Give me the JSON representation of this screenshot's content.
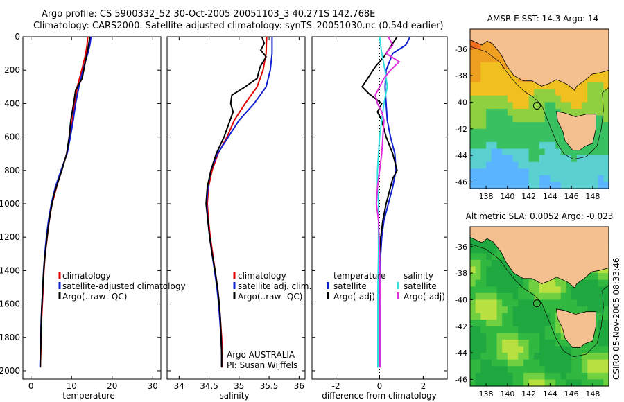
{
  "header": {
    "line1": "Argo profile: CS 5900332_52 30-Oct-2005 20051103_3 40.271S 142.768E",
    "line2": "Climatology: CARS2000. Satellite-adjusted climatology: synTS_20051030.nc (0.54d earlier)"
  },
  "colors": {
    "climatology": "#e00000",
    "satellite": "#1020d0",
    "argo": "#000000",
    "temp_satellite": "#1020d0",
    "temp_argo": "#000000",
    "sal_satellite": "#30e0e0",
    "sal_argo": "#e030e0",
    "land": "#f5c090"
  },
  "chart_data": [
    {
      "type": "line",
      "name": "temperature-profile",
      "xlabel": "temperature",
      "xticks": [
        0,
        10,
        20,
        30
      ],
      "xlim": [
        -2,
        32
      ],
      "ylim": [
        2050,
        0
      ],
      "yticks": [
        0,
        200,
        400,
        600,
        800,
        1000,
        1200,
        1400,
        1600,
        1800,
        2000
      ],
      "legend": [
        "climatology",
        "satellite-adjusted climatology",
        "Argo(..raw -QC)"
      ],
      "series": [
        {
          "name": "climatology",
          "color_key": "climatology",
          "points": [
            [
              14,
              0
            ],
            [
              13.8,
              50
            ],
            [
              13.5,
              100
            ],
            [
              12.5,
              200
            ],
            [
              11.4,
              300
            ],
            [
              10.8,
              400
            ],
            [
              10.2,
              500
            ],
            [
              9.5,
              600
            ],
            [
              8.8,
              700
            ],
            [
              7.5,
              800
            ],
            [
              6.3,
              900
            ],
            [
              5.2,
              1000
            ],
            [
              4.5,
              1100
            ],
            [
              4,
              1200
            ],
            [
              3.5,
              1300
            ],
            [
              3.2,
              1400
            ],
            [
              3,
              1500
            ],
            [
              2.8,
              1600
            ],
            [
              2.6,
              1700
            ],
            [
              2.5,
              1800
            ],
            [
              2.4,
              1900
            ],
            [
              2.3,
              1980
            ]
          ]
        },
        {
          "name": "satellite-adjusted climatology",
          "color_key": "satellite",
          "points": [
            [
              14.8,
              0
            ],
            [
              14.5,
              50
            ],
            [
              14,
              100
            ],
            [
              12.8,
              200
            ],
            [
              11.8,
              300
            ],
            [
              11,
              400
            ],
            [
              10.4,
              500
            ],
            [
              9.7,
              600
            ],
            [
              8.9,
              700
            ],
            [
              7.4,
              800
            ],
            [
              6,
              900
            ],
            [
              5,
              1000
            ],
            [
              4.3,
              1100
            ],
            [
              3.8,
              1200
            ],
            [
              3.4,
              1300
            ],
            [
              3.1,
              1400
            ],
            [
              2.9,
              1500
            ],
            [
              2.7,
              1600
            ],
            [
              2.5,
              1700
            ],
            [
              2.4,
              1800
            ],
            [
              2.3,
              1900
            ],
            [
              2.2,
              1980
            ]
          ]
        },
        {
          "name": "Argo(..raw -QC)",
          "color_key": "argo",
          "points": [
            [
              14.5,
              0
            ],
            [
              14.2,
              50
            ],
            [
              13.8,
              100
            ],
            [
              13.4,
              150
            ],
            [
              12.6,
              250
            ],
            [
              11,
              320
            ],
            [
              10.5,
              400
            ],
            [
              9.8,
              500
            ],
            [
              9.4,
              600
            ],
            [
              8.8,
              700
            ],
            [
              7.6,
              800
            ],
            [
              6.5,
              880
            ],
            [
              5.6,
              950
            ],
            [
              4.8,
              1050
            ],
            [
              4.2,
              1150
            ],
            [
              3.7,
              1250
            ],
            [
              3.3,
              1350
            ],
            [
              3,
              1450
            ],
            [
              2.8,
              1550
            ],
            [
              2.6,
              1650
            ],
            [
              2.5,
              1750
            ],
            [
              2.4,
              1850
            ],
            [
              2.3,
              1950
            ],
            [
              2.3,
              1980
            ]
          ]
        }
      ]
    },
    {
      "type": "line",
      "name": "salinity-profile",
      "xlabel": "salinity",
      "xticks": [
        34,
        34.5,
        35,
        35.5,
        36
      ],
      "xlim": [
        33.8,
        36.1
      ],
      "ylim": [
        2050,
        0
      ],
      "legend": [
        "climatology",
        "satellite adj. clim.",
        "Argo(..raw -QC)"
      ],
      "annotation": [
        "Argo AUSTRALIA",
        "PI: Susan Wijffels"
      ],
      "series": [
        {
          "name": "climatology",
          "color_key": "climatology",
          "points": [
            [
              35.46,
              0
            ],
            [
              35.45,
              100
            ],
            [
              35.4,
              200
            ],
            [
              35.3,
              300
            ],
            [
              35.1,
              400
            ],
            [
              34.92,
              500
            ],
            [
              34.8,
              600
            ],
            [
              34.65,
              700
            ],
            [
              34.55,
              800
            ],
            [
              34.49,
              900
            ],
            [
              34.47,
              1000
            ],
            [
              34.49,
              1100
            ],
            [
              34.52,
              1200
            ],
            [
              34.56,
              1300
            ],
            [
              34.6,
              1400
            ],
            [
              34.64,
              1500
            ],
            [
              34.67,
              1600
            ],
            [
              34.69,
              1700
            ],
            [
              34.71,
              1800
            ],
            [
              34.72,
              1900
            ],
            [
              34.72,
              1980
            ]
          ]
        },
        {
          "name": "satellite adj. clim.",
          "color_key": "satellite",
          "points": [
            [
              35.55,
              0
            ],
            [
              35.55,
              100
            ],
            [
              35.52,
              200
            ],
            [
              35.45,
              300
            ],
            [
              35.25,
              400
            ],
            [
              35.0,
              500
            ],
            [
              34.82,
              600
            ],
            [
              34.64,
              700
            ],
            [
              34.53,
              800
            ],
            [
              34.48,
              900
            ],
            [
              34.46,
              1000
            ],
            [
              34.48,
              1100
            ],
            [
              34.51,
              1200
            ],
            [
              34.55,
              1300
            ],
            [
              34.59,
              1400
            ],
            [
              34.63,
              1500
            ],
            [
              34.66,
              1600
            ],
            [
              34.68,
              1700
            ],
            [
              34.7,
              1800
            ],
            [
              34.71,
              1900
            ],
            [
              34.71,
              1980
            ]
          ]
        },
        {
          "name": "Argo(..raw -QC)",
          "color_key": "argo",
          "points": [
            [
              35.38,
              0
            ],
            [
              35.42,
              40
            ],
            [
              35.36,
              80
            ],
            [
              35.45,
              120
            ],
            [
              35.35,
              180
            ],
            [
              35.3,
              250
            ],
            [
              35.1,
              300
            ],
            [
              34.88,
              350
            ],
            [
              34.86,
              400
            ],
            [
              34.9,
              450
            ],
            [
              34.85,
              500
            ],
            [
              34.75,
              600
            ],
            [
              34.62,
              700
            ],
            [
              34.53,
              800
            ],
            [
              34.47,
              900
            ],
            [
              34.45,
              1000
            ],
            [
              34.48,
              1100
            ],
            [
              34.51,
              1200
            ],
            [
              34.55,
              1300
            ],
            [
              34.6,
              1400
            ],
            [
              34.64,
              1500
            ],
            [
              34.67,
              1600
            ],
            [
              34.69,
              1700
            ],
            [
              34.7,
              1800
            ],
            [
              34.71,
              1900
            ],
            [
              34.71,
              1980
            ]
          ]
        }
      ]
    },
    {
      "type": "line",
      "name": "difference-profile",
      "xlabel": "difference from climatology",
      "xticks": [
        -2,
        0,
        2
      ],
      "xlim": [
        -3.1,
        3.1
      ],
      "ylim": [
        2050,
        0
      ],
      "legend": [
        {
          "group": "temperature",
          "items": [
            "satellite",
            "Argo(-adj)"
          ]
        },
        {
          "group": "salinity",
          "items": [
            "satellite",
            "Argo(-adj)"
          ]
        }
      ],
      "series": [
        {
          "name": "temperature satellite",
          "color_key": "temp_satellite",
          "points": [
            [
              1.4,
              0
            ],
            [
              1.2,
              50
            ],
            [
              0.6,
              100
            ],
            [
              0.3,
              200
            ],
            [
              0.25,
              300
            ],
            [
              0.3,
              400
            ],
            [
              0.35,
              500
            ],
            [
              0.5,
              600
            ],
            [
              0.7,
              700
            ],
            [
              0.75,
              800
            ],
            [
              0.6,
              900
            ],
            [
              0.4,
              1000
            ],
            [
              0.2,
              1100
            ],
            [
              0.1,
              1200
            ],
            [
              0.05,
              1300
            ],
            [
              0.02,
              1400
            ],
            [
              0,
              1500
            ],
            [
              -0.02,
              1600
            ],
            [
              -0.03,
              1700
            ],
            [
              -0.04,
              1800
            ],
            [
              -0.05,
              1900
            ],
            [
              -0.05,
              1980
            ]
          ]
        },
        {
          "name": "temperature Argo(-adj)",
          "color_key": "temp_argo",
          "points": [
            [
              0.8,
              0
            ],
            [
              0.5,
              60
            ],
            [
              0.2,
              120
            ],
            [
              -0.2,
              180
            ],
            [
              -0.8,
              300
            ],
            [
              -0.5,
              340
            ],
            [
              0.1,
              400
            ],
            [
              -0.1,
              450
            ],
            [
              0.1,
              500
            ],
            [
              0.3,
              600
            ],
            [
              0.6,
              700
            ],
            [
              0.8,
              800
            ],
            [
              0.6,
              850
            ],
            [
              0.5,
              900
            ],
            [
              0.4,
              950
            ],
            [
              0.3,
              1000
            ],
            [
              0.15,
              1100
            ],
            [
              0.05,
              1200
            ],
            [
              0,
              1300
            ],
            [
              0,
              1500
            ],
            [
              0,
              1980
            ]
          ]
        },
        {
          "name": "salinity satellite",
          "color_key": "sal_satellite",
          "points": [
            [
              0,
              0
            ],
            [
              0.1,
              100
            ],
            [
              0.25,
              200
            ],
            [
              0.35,
              300
            ],
            [
              0.2,
              400
            ],
            [
              0.15,
              450
            ],
            [
              0.1,
              500
            ],
            [
              0,
              600
            ],
            [
              -0.05,
              700
            ],
            [
              -0.1,
              800
            ],
            [
              -0.1,
              900
            ],
            [
              -0.05,
              1000
            ],
            [
              -0.05,
              1100
            ],
            [
              -0.05,
              1200
            ],
            [
              -0.05,
              1300
            ],
            [
              -0.08,
              1500
            ],
            [
              -0.08,
              1980
            ]
          ]
        },
        {
          "name": "salinity Argo(-adj)",
          "color_key": "sal_argo",
          "points": [
            [
              0.4,
              0
            ],
            [
              0.6,
              50
            ],
            [
              0.3,
              100
            ],
            [
              0.9,
              150
            ],
            [
              0.5,
              200
            ],
            [
              0.2,
              250
            ],
            [
              0,
              300
            ],
            [
              -0.2,
              350
            ],
            [
              -0.1,
              400
            ],
            [
              0.1,
              450
            ],
            [
              0.2,
              500
            ],
            [
              0.15,
              600
            ],
            [
              0.1,
              700
            ],
            [
              0,
              800
            ],
            [
              -0.1,
              900
            ],
            [
              -0.15,
              1000
            ],
            [
              -0.1,
              1050
            ],
            [
              -0.05,
              1100
            ],
            [
              0,
              1300
            ],
            [
              0.02,
              1500
            ],
            [
              0.02,
              1980
            ]
          ]
        }
      ]
    },
    {
      "type": "heatmap",
      "name": "sst-map",
      "title": "AMSR-E SST: 14.3  Argo: 14",
      "xticks": [
        138,
        140,
        142,
        144,
        146,
        148
      ],
      "yticks": [
        -36,
        -38,
        -40,
        -42,
        -44,
        -46
      ],
      "xlim": [
        136.5,
        149.5
      ],
      "ylim": [
        -46.5,
        -34.5
      ],
      "marker": {
        "lon": 142.768,
        "lat": -40.271
      }
    },
    {
      "type": "heatmap",
      "name": "sla-map",
      "title": "Altimetric SLA: 0.0052  Argo: -0.023",
      "xticks": [
        138,
        140,
        142,
        144,
        146,
        148
      ],
      "yticks": [
        -36,
        -38,
        -40,
        -42,
        -44,
        -46
      ],
      "xlim": [
        136.5,
        149.5
      ],
      "ylim": [
        -46.5,
        -34.5
      ],
      "marker": {
        "lon": 142.768,
        "lat": -40.271
      }
    }
  ],
  "footer": {
    "credit": "CSIRO 05-Nov-2005 08:33:46"
  }
}
